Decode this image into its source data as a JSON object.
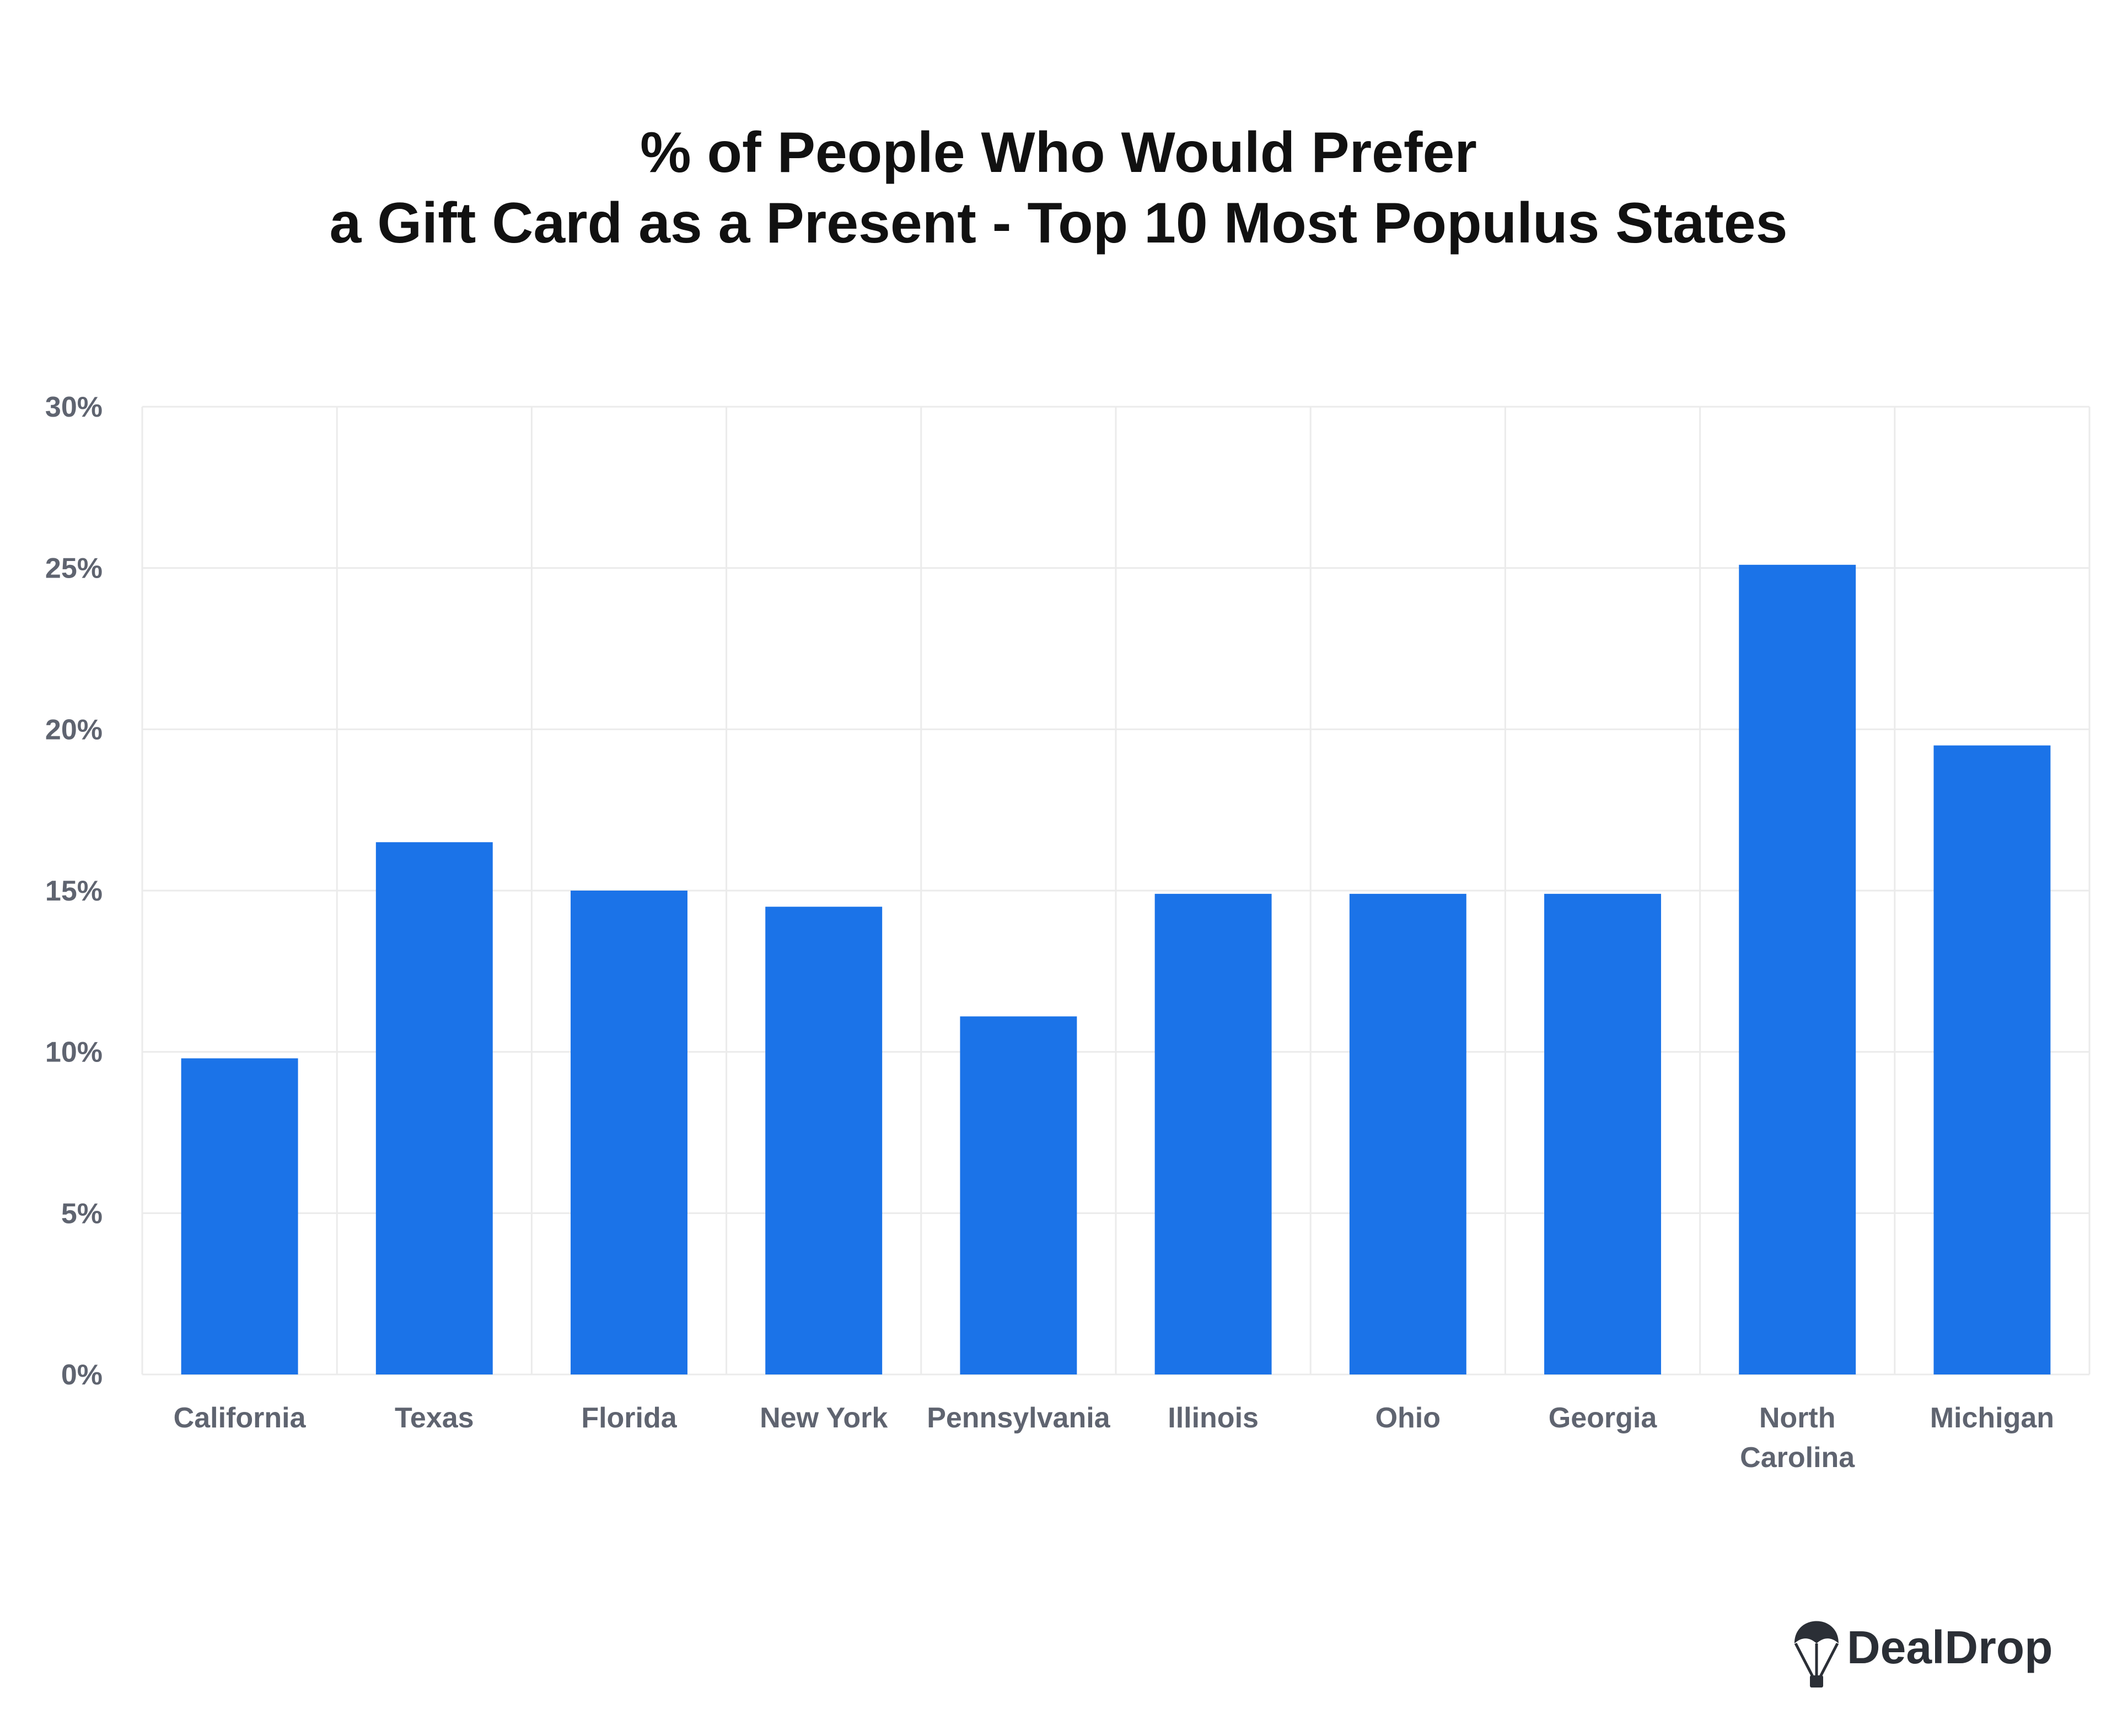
{
  "chart_data": {
    "type": "bar",
    "title": [
      "% of People Who Would Prefer",
      "a Gift Card as a Present - Top 10 Most Populus States"
    ],
    "categories": [
      [
        "California"
      ],
      [
        "Texas"
      ],
      [
        "Florida"
      ],
      [
        "New York"
      ],
      [
        "Pennsylvania"
      ],
      [
        "Illinois"
      ],
      [
        "Ohio"
      ],
      [
        "Georgia"
      ],
      [
        "North",
        "Carolina"
      ],
      [
        "Michigan"
      ]
    ],
    "values": [
      9.8,
      16.5,
      15.0,
      14.5,
      11.1,
      14.9,
      14.9,
      14.9,
      25.1,
      19.5
    ],
    "ylim": [
      0,
      30
    ],
    "yticks": [
      0,
      5,
      10,
      15,
      20,
      25,
      30
    ],
    "ytick_labels": [
      "0%",
      "5%",
      "10%",
      "15%",
      "20%",
      "25%",
      "30%"
    ],
    "xlabel": "",
    "ylabel": "",
    "grid": true,
    "bar_color": "#1b73e8",
    "grid_color": "#ebebeb"
  },
  "brand": {
    "name": "DealDrop",
    "icon": "parachute-icon"
  }
}
